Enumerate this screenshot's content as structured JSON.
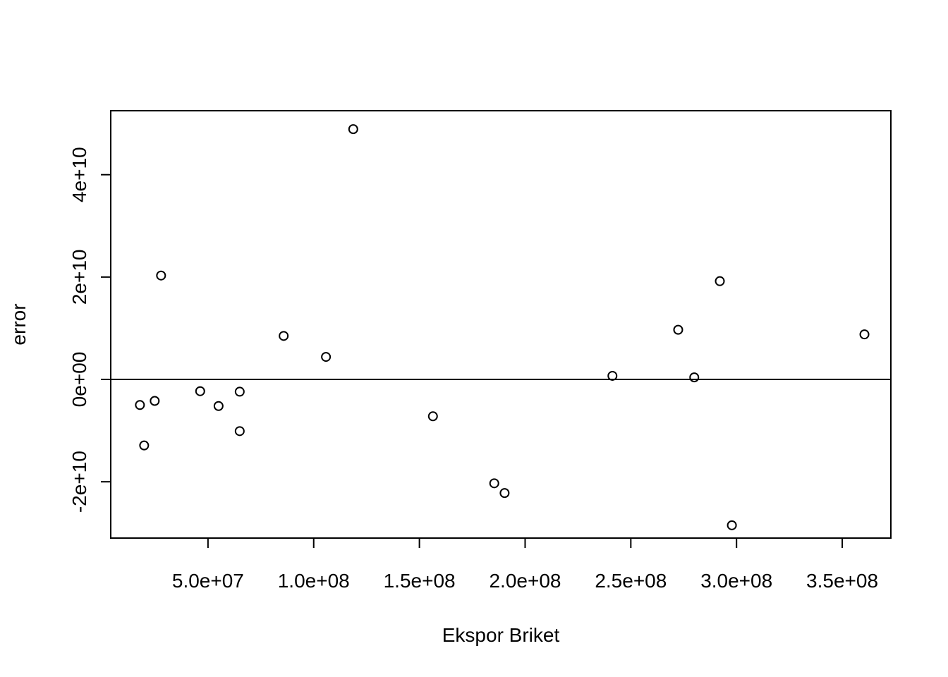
{
  "chart_data": {
    "type": "scatter",
    "title": "",
    "xlabel": "Ekspor Briket",
    "ylabel": "error",
    "xlim": [
      4000000,
      373000000
    ],
    "ylim": [
      -31000000000,
      52500000000
    ],
    "x_ticks": [
      {
        "value": 50000000,
        "label": "5.0e+07"
      },
      {
        "value": 100000000,
        "label": "1.0e+08"
      },
      {
        "value": 150000000,
        "label": "1.5e+08"
      },
      {
        "value": 200000000,
        "label": "2.0e+08"
      },
      {
        "value": 250000000,
        "label": "2.5e+08"
      },
      {
        "value": 300000000,
        "label": "3.0e+08"
      },
      {
        "value": 350000000,
        "label": "3.5e+08"
      }
    ],
    "y_ticks": [
      {
        "value": -20000000000,
        "label": "-2e+10"
      },
      {
        "value": 0,
        "label": "0e+00"
      },
      {
        "value": 20000000000,
        "label": "2e+10"
      },
      {
        "value": 40000000000,
        "label": "4e+10"
      }
    ],
    "reference_line_y": 0,
    "grid": false,
    "points": [
      {
        "x": 17800000,
        "y": -5000000000
      },
      {
        "x": 19800000,
        "y": -12900000000
      },
      {
        "x": 24800000,
        "y": -4200000000
      },
      {
        "x": 27800000,
        "y": 20300000000
      },
      {
        "x": 46300000,
        "y": -2300000000
      },
      {
        "x": 55000000,
        "y": -5200000000
      },
      {
        "x": 65000000,
        "y": -2400000000
      },
      {
        "x": 65000000,
        "y": -10100000000
      },
      {
        "x": 85800000,
        "y": 8500000000
      },
      {
        "x": 105800000,
        "y": 4400000000
      },
      {
        "x": 118700000,
        "y": 48900000000
      },
      {
        "x": 156400000,
        "y": -7200000000
      },
      {
        "x": 185400000,
        "y": -20300000000
      },
      {
        "x": 190300000,
        "y": -22200000000
      },
      {
        "x": 241300000,
        "y": 700000000
      },
      {
        "x": 272400000,
        "y": 9700000000
      },
      {
        "x": 280000000,
        "y": 400000000
      },
      {
        "x": 292100000,
        "y": 19200000000
      },
      {
        "x": 297800000,
        "y": -28500000000
      },
      {
        "x": 360500000,
        "y": 8800000000
      }
    ]
  }
}
